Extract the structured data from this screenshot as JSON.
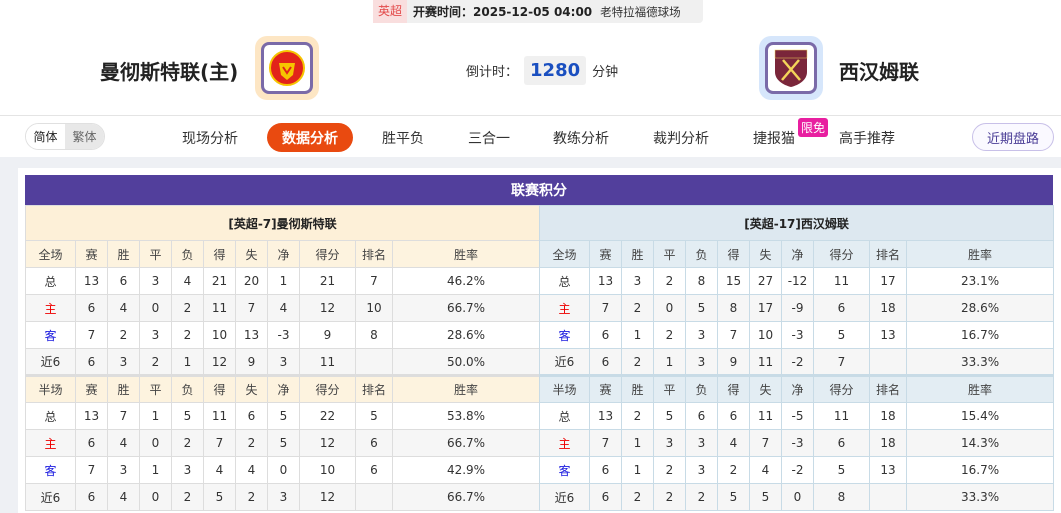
{
  "match": {
    "league": "英超",
    "kickoff": "开赛时间：2025-12-05 04:00",
    "venue": "老特拉福德球场"
  },
  "home": {
    "name": "曼彻斯特联(主)",
    "logo_color": "#fde6c4"
  },
  "away": {
    "name": "西汉姆联",
    "logo_color": "#d6e6fb"
  },
  "countdown": {
    "label": "倒计时：",
    "value": "1280",
    "unit": "分钟"
  },
  "lang": {
    "simplified": "简体",
    "traditional": "繁体"
  },
  "nav": [
    {
      "label": "现场分析"
    },
    {
      "label": "数据分析",
      "active": true
    },
    {
      "label": "胜平负"
    },
    {
      "label": "三合一"
    },
    {
      "label": "教练分析"
    },
    {
      "label": "裁判分析"
    },
    {
      "label": "捷报猫"
    },
    {
      "label": "高手推荐"
    }
  ],
  "nav_badge": "限免",
  "recent_button": "近期盘路",
  "section_title": "联赛积分",
  "columns": [
    "赛",
    "胜",
    "平",
    "负",
    "得",
    "失",
    "净",
    "得分",
    "排名",
    "胜率"
  ],
  "tables": [
    {
      "team": "[英超-7]曼彻斯特联",
      "full": {
        "label": "全场",
        "rows": [
          [
            "总",
            "13",
            "6",
            "3",
            "4",
            "21",
            "20",
            "1",
            "21",
            "7",
            "46.2%"
          ],
          [
            "主",
            "6",
            "4",
            "0",
            "2",
            "11",
            "7",
            "4",
            "12",
            "10",
            "66.7%"
          ],
          [
            "客",
            "7",
            "2",
            "3",
            "2",
            "10",
            "13",
            "-3",
            "9",
            "8",
            "28.6%"
          ],
          [
            "近6",
            "6",
            "3",
            "2",
            "1",
            "12",
            "9",
            "3",
            "11",
            "",
            "50.0%"
          ]
        ]
      },
      "half": {
        "label": "半场",
        "rows": [
          [
            "总",
            "13",
            "7",
            "1",
            "5",
            "11",
            "6",
            "5",
            "22",
            "5",
            "53.8%"
          ],
          [
            "主",
            "6",
            "4",
            "0",
            "2",
            "7",
            "2",
            "5",
            "12",
            "6",
            "66.7%"
          ],
          [
            "客",
            "7",
            "3",
            "1",
            "3",
            "4",
            "4",
            "0",
            "10",
            "6",
            "42.9%"
          ],
          [
            "近6",
            "6",
            "4",
            "0",
            "2",
            "5",
            "2",
            "3",
            "12",
            "",
            "66.7%"
          ]
        ]
      }
    },
    {
      "team": "[英超-17]西汉姆联",
      "full": {
        "label": "全场",
        "rows": [
          [
            "总",
            "13",
            "3",
            "2",
            "8",
            "15",
            "27",
            "-12",
            "11",
            "17",
            "23.1%"
          ],
          [
            "主",
            "7",
            "2",
            "0",
            "5",
            "8",
            "17",
            "-9",
            "6",
            "18",
            "28.6%"
          ],
          [
            "客",
            "6",
            "1",
            "2",
            "3",
            "7",
            "10",
            "-3",
            "5",
            "13",
            "16.7%"
          ],
          [
            "近6",
            "6",
            "2",
            "1",
            "3",
            "9",
            "11",
            "-2",
            "7",
            "",
            "33.3%"
          ]
        ]
      },
      "half": {
        "label": "半场",
        "rows": [
          [
            "总",
            "13",
            "2",
            "5",
            "6",
            "6",
            "11",
            "-5",
            "11",
            "18",
            "15.4%"
          ],
          [
            "主",
            "7",
            "1",
            "3",
            "3",
            "4",
            "7",
            "-3",
            "6",
            "18",
            "14.3%"
          ],
          [
            "客",
            "6",
            "1",
            "2",
            "3",
            "2",
            "4",
            "-2",
            "5",
            "13",
            "16.7%"
          ],
          [
            "近6",
            "6",
            "2",
            "2",
            "2",
            "5",
            "5",
            "0",
            "8",
            "",
            "33.3%"
          ]
        ]
      }
    }
  ]
}
